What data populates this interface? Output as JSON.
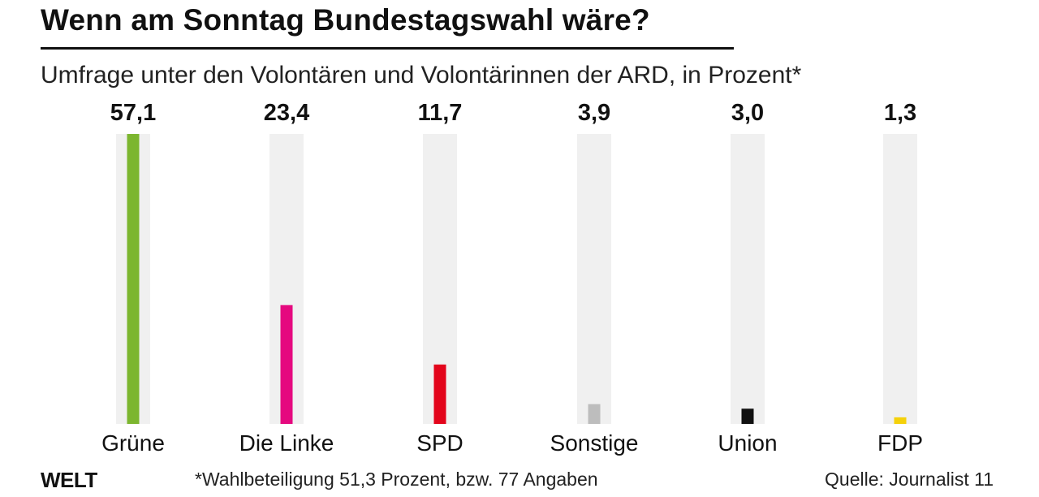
{
  "title": "Wenn am Sonntag Bundestagswahl wäre?",
  "subtitle": "Umfrage unter den Volontären und Volontärinnen der ARD, in Prozent*",
  "footer": {
    "logo": "WELT",
    "note": "*Wahlbeteiligung 51,3 Prozent, bzw. 77 Angaben",
    "source": "Quelle: Journalist 11"
  },
  "chart_data": {
    "type": "bar",
    "categories": [
      "Grüne",
      "Die Linke",
      "SPD",
      "Sonstige",
      "Union",
      "FDP"
    ],
    "values": [
      57.1,
      23.4,
      11.7,
      3.9,
      3.0,
      1.3
    ],
    "value_labels": [
      "57,1",
      "23,4",
      "11,7",
      "3,9",
      "3,0",
      "1,3"
    ],
    "colors": [
      "#7cb62f",
      "#e5097f",
      "#e3051b",
      "#bdbdbd",
      "#111111",
      "#f5d10a"
    ],
    "track_color": "#f0f0f0",
    "ylim": [
      0,
      57.1
    ],
    "grid": false,
    "legend": "none"
  }
}
